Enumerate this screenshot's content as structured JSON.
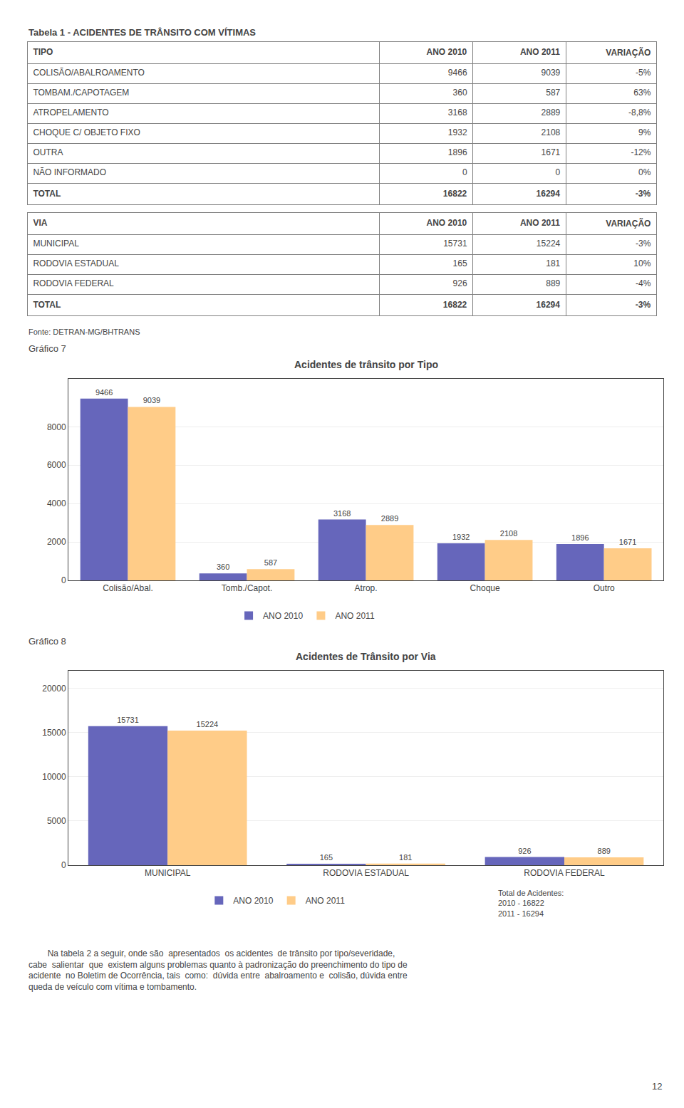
{
  "table": {
    "title": "Tabela 1 - ACIDENTES DE TRÂNSITO COM VÍTIMAS",
    "sections": [
      {
        "headers": [
          "TIPO",
          "ANO 2010",
          "ANO 2011",
          "VARIAÇÃO"
        ],
        "rows": [
          [
            "COLISÃO/ABALROAMENTO",
            "9466",
            "9039",
            "-5%"
          ],
          [
            "TOMBAM./CAPOTAGEM",
            "360",
            "587",
            "63%"
          ],
          [
            "ATROPELAMENTO",
            "3168",
            "2889",
            "-8,8%"
          ],
          [
            "CHOQUE C/ OBJETO FIXO",
            "1932",
            "2108",
            "9%"
          ],
          [
            "OUTRA",
            "1896",
            "1671",
            "-12%"
          ],
          [
            "NÃO INFORMADO",
            "0",
            "0",
            "0%"
          ],
          [
            "TOTAL",
            "16822",
            "16294",
            "-3%"
          ]
        ]
      },
      {
        "headers": [
          "VIA",
          "ANO 2010",
          "ANO 2011",
          "VARIAÇÃO"
        ],
        "rows": [
          [
            "MUNICIPAL",
            "15731",
            "15224",
            "-3%"
          ],
          [
            "RODOVIA ESTADUAL",
            "165",
            "181",
            "10%"
          ],
          [
            "RODOVIA FEDERAL",
            "926",
            "889",
            "-4%"
          ],
          [
            "TOTAL",
            "16822",
            "16294",
            "-3%"
          ]
        ]
      }
    ],
    "source": "Fonte: DETRAN-MG/BHTRANS"
  },
  "chart_data": [
    {
      "type": "bar",
      "label": "Gráfico 7",
      "title": "Acidentes de trânsito por Tipo",
      "categories": [
        "Colisão/Abal.",
        "Tomb./Capot.",
        "Atrop.",
        "Choque",
        "Outro"
      ],
      "series": [
        {
          "name": "ANO 2010",
          "color": "#6666bb",
          "values": [
            9466,
            360,
            3168,
            1932,
            1896
          ]
        },
        {
          "name": "ANO 2011",
          "color": "#ffcc88",
          "values": [
            9039,
            587,
            2889,
            2108,
            1671
          ]
        }
      ],
      "ylim": [
        0,
        10500
      ],
      "yticks": [
        0,
        2000,
        4000,
        6000,
        8000
      ],
      "grid": true,
      "data_labels": true,
      "legend": "bottom"
    },
    {
      "type": "bar",
      "label": "Gráfico 8",
      "title": "Acidentes de Trânsito por Via",
      "categories": [
        "MUNICIPAL",
        "RODOVIA ESTADUAL",
        "RODOVIA FEDERAL"
      ],
      "series": [
        {
          "name": "ANO 2010",
          "color": "#6666bb",
          "values": [
            15731,
            165,
            926
          ]
        },
        {
          "name": "ANO 2011",
          "color": "#ffcc88",
          "values": [
            15224,
            181,
            889
          ]
        }
      ],
      "ylim": [
        0,
        22000
      ],
      "yticks": [
        0,
        5000,
        10000,
        15000,
        20000
      ],
      "grid": true,
      "data_labels": true,
      "legend": "bottom",
      "annotations": [
        "Total de Acidentes:",
        "2010 - 16822",
        "2011 - 16294"
      ]
    }
  ],
  "paragraph": [
    "        Na tabela 2 a seguir, onde são  apresentados  os acidentes  de trânsito por tipo/severidade,",
    "cabe  salientar  que  existem alguns problemas quanto à padronização do preenchimento do tipo de",
    "acidente  no Boletim de Ocorrência, tais  como:  dúvida entre  abalroamento e  colisão, dúvida entre",
    "queda de veículo com vítima e tombamento."
  ],
  "page_number": "12"
}
